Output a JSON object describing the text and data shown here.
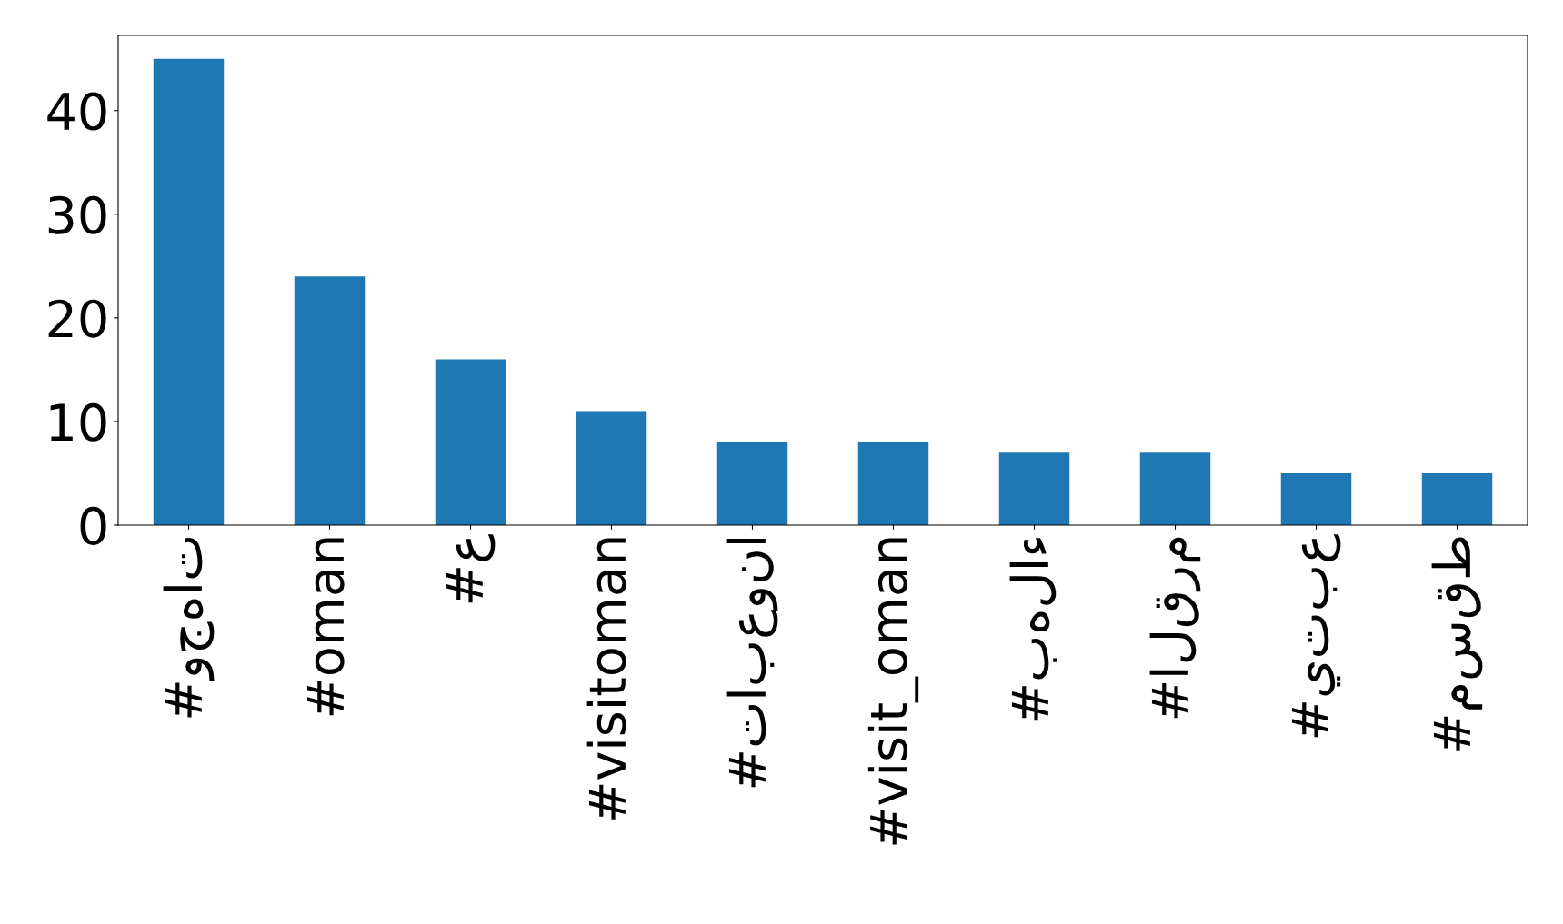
{
  "chart_data": {
    "type": "bar",
    "categories": [
      "#وجهات",
      "#oman",
      "#ع",
      "#visitoman",
      "#تابعونا",
      "#visit_oman",
      "#بهلاء",
      "#القرم",
      "#يتبع",
      "#مسقط"
    ],
    "values": [
      45,
      24,
      16,
      11,
      8,
      8,
      7,
      7,
      5,
      5
    ],
    "color": "#1f77b4",
    "ylim": [
      0,
      47.25
    ],
    "yticks": [
      0,
      10,
      20,
      30,
      40
    ],
    "grid": false,
    "legend": false
  }
}
